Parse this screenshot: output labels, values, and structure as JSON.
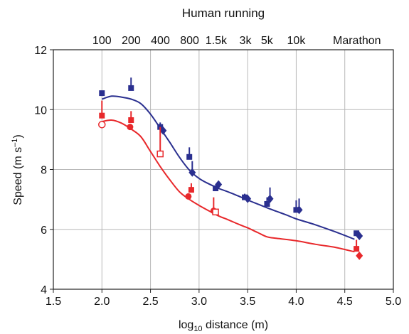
{
  "chart_data": {
    "type": "scatter",
    "title": "Human running",
    "xlabel_base": "log",
    "xlabel_sub": "10",
    "xlabel_rest": " distance (m)",
    "ylabel_main": "Speed (m s",
    "ylabel_sup": "–1",
    "ylabel_end": ")",
    "xlim": [
      1.5,
      5.0
    ],
    "ylim": [
      4,
      12
    ],
    "grid": true,
    "x_ticks": [
      "1.5",
      "2.0",
      "2.5",
      "3.0",
      "3.5",
      "4.0",
      "4.5",
      "5.0"
    ],
    "y_ticks": [
      "4",
      "6",
      "8",
      "10",
      "12"
    ],
    "top_ticks": [
      {
        "x": 2.0,
        "label": "100"
      },
      {
        "x": 2.301,
        "label": "200"
      },
      {
        "x": 2.602,
        "label": "400"
      },
      {
        "x": 2.903,
        "label": "800"
      },
      {
        "x": 3.176,
        "label": "1.5k"
      },
      {
        "x": 3.477,
        "label": "3k"
      },
      {
        "x": 3.699,
        "label": "5k"
      },
      {
        "x": 4.0,
        "label": "10k"
      },
      {
        "x": 4.625,
        "label": "Marathon"
      }
    ],
    "colors": {
      "blue": "#2a2f8f",
      "red": "#e8282b",
      "grid": "#b8b8b8"
    },
    "series": [
      {
        "color": "#2a2f8f",
        "points": [
          {
            "x": 2.0,
            "y": 10.55,
            "err": 0,
            "marker": "square"
          },
          {
            "x": 2.3,
            "y": 10.72,
            "err": 0.35,
            "marker": "square"
          },
          {
            "x": 2.6,
            "y": 9.42,
            "err": 0.15,
            "marker": "square"
          },
          {
            "x": 2.63,
            "y": 9.3,
            "err": 0.1,
            "marker": "diamond"
          },
          {
            "x": 2.9,
            "y": 8.42,
            "err": 0.32,
            "marker": "square"
          },
          {
            "x": 2.93,
            "y": 7.9,
            "err": 0.38,
            "marker": "diamond"
          },
          {
            "x": 3.17,
            "y": 7.37,
            "err": 0.1,
            "marker": "square"
          },
          {
            "x": 3.2,
            "y": 7.5,
            "err": 0,
            "marker": "diamond"
          },
          {
            "x": 3.47,
            "y": 7.07,
            "err": 0.12,
            "marker": "square"
          },
          {
            "x": 3.5,
            "y": 7.02,
            "err": 0,
            "marker": "diamond"
          },
          {
            "x": 3.7,
            "y": 6.85,
            "err": 0.22,
            "marker": "square"
          },
          {
            "x": 3.73,
            "y": 7.02,
            "err": 0.38,
            "marker": "diamond"
          },
          {
            "x": 4.0,
            "y": 6.65,
            "err": 0.32,
            "marker": "square"
          },
          {
            "x": 4.03,
            "y": 6.65,
            "err": 0.38,
            "marker": "diamond"
          },
          {
            "x": 4.62,
            "y": 5.87,
            "err": 0,
            "marker": "square"
          },
          {
            "x": 4.65,
            "y": 5.78,
            "err": 0,
            "marker": "diamond"
          }
        ],
        "curve": [
          [
            2.0,
            10.35
          ],
          [
            2.1,
            10.45
          ],
          [
            2.2,
            10.42
          ],
          [
            2.3,
            10.35
          ],
          [
            2.4,
            10.2
          ],
          [
            2.5,
            9.85
          ],
          [
            2.6,
            9.38
          ],
          [
            2.7,
            8.9
          ],
          [
            2.8,
            8.4
          ],
          [
            2.9,
            7.98
          ],
          [
            3.0,
            7.7
          ],
          [
            3.1,
            7.52
          ],
          [
            3.2,
            7.37
          ],
          [
            3.3,
            7.25
          ],
          [
            3.4,
            7.12
          ],
          [
            3.5,
            6.98
          ],
          [
            3.6,
            6.85
          ],
          [
            3.7,
            6.72
          ],
          [
            3.8,
            6.6
          ],
          [
            3.9,
            6.48
          ],
          [
            4.0,
            6.35
          ],
          [
            4.2,
            6.15
          ],
          [
            4.4,
            5.92
          ],
          [
            4.6,
            5.67
          ]
        ]
      },
      {
        "color": "#e8282b",
        "points": [
          {
            "x": 2.0,
            "y": 9.5,
            "err": 0,
            "marker": "circle-open"
          },
          {
            "x": 2.0,
            "y": 9.8,
            "err": 0.5,
            "marker": "square"
          },
          {
            "x": 2.29,
            "y": 9.42,
            "err": 0,
            "marker": "circle"
          },
          {
            "x": 2.3,
            "y": 9.65,
            "err": 0.3,
            "marker": "square"
          },
          {
            "x": 2.6,
            "y": 8.52,
            "err": 0.9,
            "marker": "square-open"
          },
          {
            "x": 2.89,
            "y": 7.1,
            "err": 0,
            "marker": "circle"
          },
          {
            "x": 2.92,
            "y": 7.32,
            "err": 0.22,
            "marker": "square"
          },
          {
            "x": 3.15,
            "y": 6.62,
            "err": 0.45,
            "marker": "circle"
          },
          {
            "x": 3.17,
            "y": 6.58,
            "err": 0,
            "marker": "square-open"
          },
          {
            "x": 4.62,
            "y": 5.35,
            "err": 0.3,
            "marker": "square"
          },
          {
            "x": 4.65,
            "y": 5.12,
            "err": 0,
            "marker": "diamond"
          }
        ],
        "curve": [
          [
            2.0,
            9.6
          ],
          [
            2.1,
            9.65
          ],
          [
            2.2,
            9.55
          ],
          [
            2.3,
            9.35
          ],
          [
            2.4,
            9.1
          ],
          [
            2.5,
            8.6
          ],
          [
            2.6,
            8.1
          ],
          [
            2.7,
            7.65
          ],
          [
            2.8,
            7.25
          ],
          [
            2.9,
            7.0
          ],
          [
            3.0,
            6.8
          ],
          [
            3.1,
            6.62
          ],
          [
            3.2,
            6.45
          ],
          [
            3.3,
            6.32
          ],
          [
            3.4,
            6.18
          ],
          [
            3.5,
            6.05
          ],
          [
            3.6,
            5.9
          ],
          [
            3.7,
            5.75
          ],
          [
            3.8,
            5.7
          ],
          [
            4.0,
            5.62
          ],
          [
            4.2,
            5.5
          ],
          [
            4.4,
            5.4
          ],
          [
            4.6,
            5.25
          ]
        ]
      }
    ]
  }
}
